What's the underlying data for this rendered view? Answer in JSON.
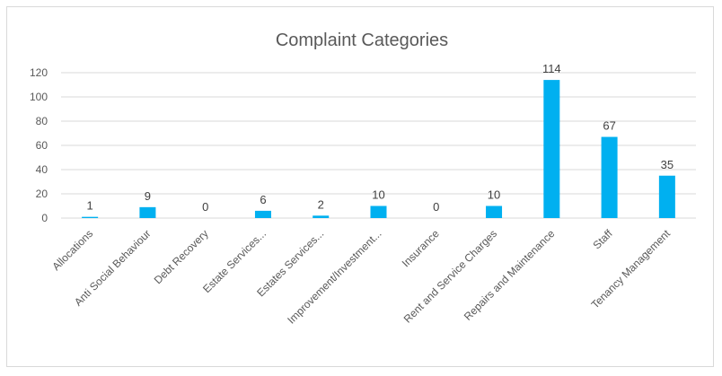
{
  "chart_data": {
    "type": "bar",
    "title": "Complaint Categories",
    "xlabel": "",
    "ylabel": "",
    "categories": [
      "Allocations",
      "Anti Social Behaviour",
      "Debt Recovery",
      "Estate Services...",
      "Estates Services...",
      "Improvement/Investment...",
      "Insurance",
      "Rent and Service Charges",
      "Repairs and Maintenance",
      "Staff",
      "Tenancy Management"
    ],
    "values": [
      1,
      9,
      0,
      6,
      2,
      10,
      0,
      10,
      114,
      67,
      35
    ],
    "ylim": [
      0,
      120
    ],
    "yticks": [
      0,
      20,
      40,
      60,
      80,
      100,
      120
    ],
    "grid": true,
    "legend": "none",
    "bar_color": "#00b0f0",
    "data_labels": true
  }
}
